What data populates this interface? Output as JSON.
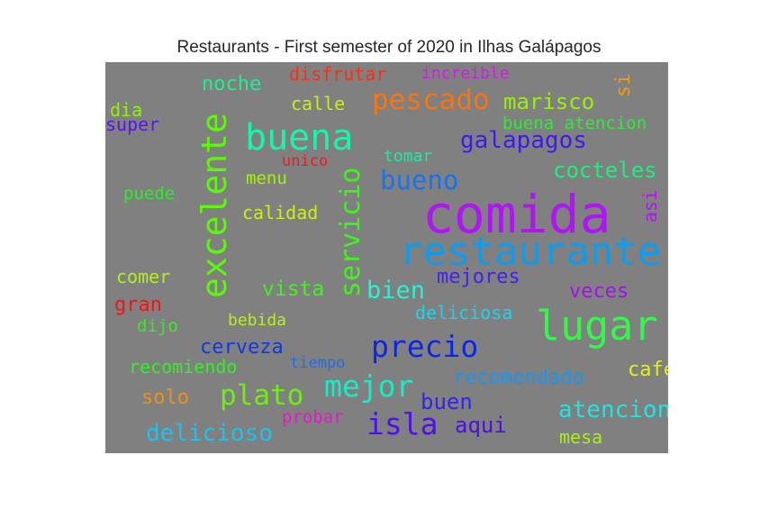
{
  "chart_data": {
    "type": "wordcloud",
    "title": "Restaurants - First semester of 2020 in Ilhas Galápagos",
    "background": "#808080",
    "words": [
      {
        "text": "comida",
        "color": "#b016f3"
      },
      {
        "text": "restaurante",
        "color": "#119bed"
      },
      {
        "text": "excelente",
        "color": "#5cf80a"
      },
      {
        "text": "servicio",
        "color": "#3ff41f"
      },
      {
        "text": "buena",
        "color": "#16f6a8"
      },
      {
        "text": "lugar",
        "color": "#34f74b"
      },
      {
        "text": "precio",
        "color": "#0b26e8"
      },
      {
        "text": "mejor",
        "color": "#16ecc6"
      },
      {
        "text": "pescado",
        "color": "#f87312"
      },
      {
        "text": "galapagos",
        "color": "#3e1af0"
      },
      {
        "text": "bueno",
        "color": "#1673ee"
      },
      {
        "text": "isla",
        "color": "#4e11ed"
      },
      {
        "text": "plato",
        "color": "#6cf010"
      },
      {
        "text": "bien",
        "color": "#25f4d4"
      },
      {
        "text": "marisco",
        "color": "#97f20c"
      },
      {
        "text": "atencion",
        "color": "#15e8e6"
      },
      {
        "text": "cocteles",
        "color": "#19f07e"
      },
      {
        "text": "delicioso",
        "color": "#18c3f0"
      },
      {
        "text": "aqui",
        "color": "#4a10e6"
      },
      {
        "text": "buen",
        "color": "#3621ef"
      },
      {
        "text": "recomendado",
        "color": "#1897f0"
      },
      {
        "text": "cerveza",
        "color": "#1137e8"
      },
      {
        "text": "veces",
        "color": "#a311ef"
      },
      {
        "text": "mejores",
        "color": "#4520ef"
      },
      {
        "text": "vista",
        "color": "#44f023"
      },
      {
        "text": "noche",
        "color": "#20f08b"
      },
      {
        "text": "calidad",
        "color": "#cdf012"
      },
      {
        "text": "cafe",
        "color": "#e0ef17"
      },
      {
        "text": "disfrutar",
        "color": "#f2331a"
      },
      {
        "text": "solo",
        "color": "#ee9012"
      },
      {
        "text": "gran",
        "color": "#f01515"
      },
      {
        "text": "recomiendo",
        "color": "#31f025"
      },
      {
        "text": "deliciosa",
        "color": "#1ad4ef"
      },
      {
        "text": "calle",
        "color": "#c3f015"
      },
      {
        "text": "buena atencion",
        "color": "#28ef36"
      },
      {
        "text": "comer",
        "color": "#b4f015"
      },
      {
        "text": "probar",
        "color": "#e617c8"
      },
      {
        "text": "mesa",
        "color": "#a8f112"
      },
      {
        "text": "increible",
        "color": "#d419ec"
      },
      {
        "text": "menu",
        "color": "#a2f013"
      },
      {
        "text": "puede",
        "color": "#26f025"
      },
      {
        "text": "tomar",
        "color": "#18ee9e"
      },
      {
        "text": "bebida",
        "color": "#b8f014"
      },
      {
        "text": "dijo",
        "color": "#3ae82a"
      },
      {
        "text": "dia",
        "color": "#8ef30f"
      },
      {
        "text": "super",
        "color": "#5a14f0"
      },
      {
        "text": "unico",
        "color": "#f01a1a"
      },
      {
        "text": "tiempo",
        "color": "#1a6ef0"
      },
      {
        "text": "si",
        "color": "#f29a10"
      },
      {
        "text": "asi",
        "color": "#b415ee"
      }
    ]
  }
}
